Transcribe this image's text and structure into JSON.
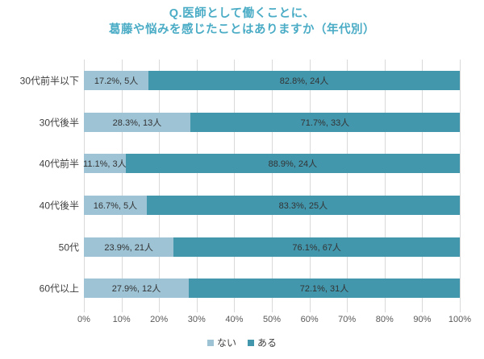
{
  "title": {
    "text": "Q.医師として働くことに、\n葛藤や悩みを感じたことはありますか（年代別）",
    "color": "#4BACC6"
  },
  "chart_data": {
    "type": "bar",
    "orientation": "horizontal",
    "stacked": true,
    "title": "Q.医師として働くことに、葛藤や悩みを感じたことはありますか（年代別）",
    "categories": [
      "30代前半以下",
      "30代後半",
      "40代前半",
      "40代後半",
      "50代",
      "60代以上"
    ],
    "series": [
      {
        "name": "ない",
        "color": "#9DC3D5",
        "values": [
          17.2,
          28.3,
          11.1,
          16.7,
          23.9,
          27.9
        ],
        "counts": [
          5,
          13,
          3,
          5,
          21,
          12
        ],
        "labels": [
          "17.2%, 5人",
          "28.3%, 13人",
          "11.1%, 3人",
          "16.7%, 5人",
          "23.9%, 21人",
          "27.9%, 12人"
        ]
      },
      {
        "name": "ある",
        "color": "#4397AD",
        "values": [
          82.8,
          71.7,
          88.9,
          83.3,
          76.1,
          72.1
        ],
        "counts": [
          24,
          33,
          24,
          25,
          67,
          31
        ],
        "labels": [
          "82.8%, 24人",
          "71.7%, 33人",
          "88.9%, 24人",
          "83.3%, 25人",
          "76.1%, 67人",
          "72.1%, 31人"
        ]
      }
    ],
    "x_ticks": [
      "0%",
      "10%",
      "20%",
      "30%",
      "40%",
      "50%",
      "60%",
      "70%",
      "80%",
      "90%",
      "100%"
    ],
    "xlim": [
      0,
      100
    ],
    "grid": "vertical",
    "gridline_color": "#D9D9D9",
    "label_color": "#333333",
    "legend_position": "bottom"
  }
}
